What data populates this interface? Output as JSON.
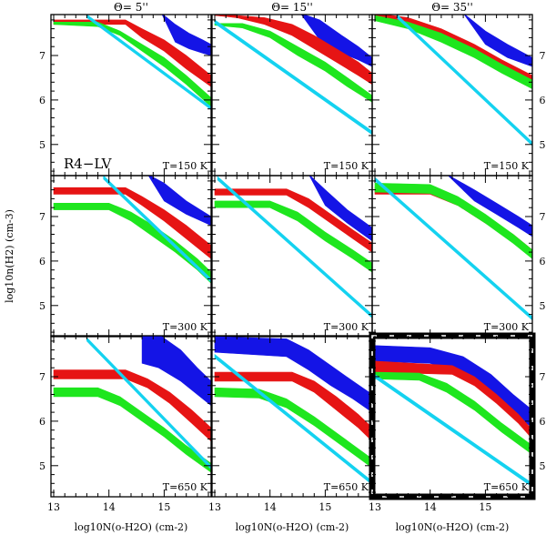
{
  "chart_data": {
    "type": "multi-panel band plot",
    "xlabel": "log10N(o-H2O)  (cm-2)",
    "ylabel": "log10n(H2)  (cm-3)",
    "x_tick_labels": [
      "13",
      "14",
      "15"
    ],
    "y_tick_labels": [
      "5",
      "6",
      "7"
    ],
    "xlim": [
      12.95,
      15.85
    ],
    "ylim": [
      4.3,
      7.92
    ],
    "column_titles": [
      "Θ= 5''",
      "Θ= 15''",
      "Θ= 35''"
    ],
    "row_labels": [
      "T=150 K",
      "T=300 K",
      "T=650 K"
    ],
    "panel_annotation": "R4−LV",
    "highlighted_panel": "T=650 K, Θ= 35''",
    "series_colors": {
      "blue": "#1414e6",
      "red": "#e61414",
      "green": "#1ee61e",
      "cyan": "#14d2f0"
    },
    "panels": [
      {
        "row": 0,
        "col": 0,
        "bands": [
          {
            "color": "blue",
            "x": [
              14.95,
              15.2,
              15.45,
              15.7,
              15.85
            ],
            "upper": [
              7.95,
              7.7,
              7.5,
              7.35,
              7.25
            ],
            "lower": [
              7.95,
              7.3,
              7.15,
              7.05,
              7.0
            ]
          },
          {
            "color": "red",
            "x": [
              13.0,
              14.3,
              14.6,
              15.0,
              15.4,
              15.85
            ],
            "upper": [
              7.8,
              7.8,
              7.6,
              7.35,
              7.0,
              6.55
            ],
            "lower": [
              7.7,
              7.7,
              7.4,
              7.1,
              6.7,
              6.3
            ]
          },
          {
            "color": "green",
            "x": [
              13.0,
              13.8,
              14.2,
              14.6,
              15.0,
              15.4,
              15.85
            ],
            "upper": [
              7.75,
              7.75,
              7.55,
              7.25,
              6.95,
              6.55,
              6.05
            ],
            "lower": [
              7.7,
              7.65,
              7.45,
              7.1,
              6.75,
              6.35,
              5.85
            ]
          },
          {
            "color": "cyan",
            "x": [
              13.6,
              15.85
            ],
            "upper": [
              7.92,
              5.85
            ],
            "lower": [
              7.85,
              5.78
            ]
          }
        ]
      },
      {
        "row": 0,
        "col": 1,
        "bands": [
          {
            "color": "blue",
            "x": [
              14.55,
              14.9,
              15.3,
              15.6,
              15.85
            ],
            "upper": [
              7.95,
              7.8,
              7.45,
              7.2,
              6.95
            ],
            "lower": [
              7.95,
              7.35,
              7.05,
              6.9,
              6.75
            ]
          },
          {
            "color": "red",
            "x": [
              13.0,
              13.4,
              13.9,
              14.4,
              14.8,
              15.2,
              15.6,
              15.85
            ],
            "upper": [
              7.95,
              7.9,
              7.85,
              7.7,
              7.45,
              7.15,
              6.85,
              6.6
            ],
            "lower": [
              7.9,
              7.85,
              7.7,
              7.45,
              7.15,
              6.85,
              6.55,
              6.35
            ]
          },
          {
            "color": "green",
            "x": [
              13.0,
              13.5,
              14.0,
              14.5,
              15.0,
              15.4,
              15.85
            ],
            "upper": [
              7.72,
              7.72,
              7.55,
              7.2,
              6.85,
              6.5,
              6.1
            ],
            "lower": [
              7.68,
              7.62,
              7.4,
              7.0,
              6.65,
              6.3,
              5.95
            ]
          },
          {
            "color": "cyan",
            "x": [
              13.0,
              15.85
            ],
            "upper": [
              7.8,
              5.3
            ],
            "lower": [
              7.72,
              5.22
            ]
          }
        ]
      },
      {
        "row": 0,
        "col": 2,
        "bands": [
          {
            "color": "blue",
            "x": [
              14.6,
              15.0,
              15.4,
              15.85
            ],
            "upper": [
              7.95,
              7.55,
              7.25,
              6.95
            ],
            "lower": [
              7.95,
              7.25,
              6.95,
              6.75
            ]
          },
          {
            "color": "red",
            "x": [
              13.0,
              13.6,
              14.2,
              14.8,
              15.3,
              15.85
            ],
            "upper": [
              7.95,
              7.85,
              7.6,
              7.25,
              6.9,
              6.55
            ],
            "lower": [
              7.85,
              7.7,
              7.4,
              7.05,
              6.7,
              6.35
            ]
          },
          {
            "color": "green",
            "x": [
              13.0,
              13.6,
              14.2,
              14.8,
              15.3,
              15.85
            ],
            "upper": [
              7.9,
              7.75,
              7.5,
              7.15,
              6.8,
              6.45
            ],
            "lower": [
              7.78,
              7.6,
              7.3,
              6.95,
              6.6,
              6.25
            ]
          },
          {
            "color": "cyan",
            "x": [
              13.4,
              15.85
            ],
            "upper": [
              7.92,
              5.05
            ],
            "lower": [
              7.84,
              4.97
            ]
          }
        ]
      },
      {
        "row": 1,
        "col": 0,
        "bands": [
          {
            "color": "blue",
            "x": [
              14.7,
              15.0,
              15.4,
              15.85
            ],
            "upper": [
              7.95,
              7.75,
              7.35,
              7.0
            ],
            "lower": [
              7.95,
              7.35,
              7.05,
              6.8
            ]
          },
          {
            "color": "red",
            "x": [
              13.0,
              14.3,
              14.6,
              15.0,
              15.4,
              15.85
            ],
            "upper": [
              7.65,
              7.65,
              7.45,
              7.15,
              6.8,
              6.35
            ],
            "lower": [
              7.5,
              7.5,
              7.25,
              6.9,
              6.5,
              6.05
            ]
          },
          {
            "color": "green",
            "x": [
              13.0,
              14.0,
              14.4,
              14.8,
              15.2,
              15.6,
              15.85
            ],
            "upper": [
              7.3,
              7.3,
              7.1,
              6.8,
              6.45,
              6.05,
              5.75
            ],
            "lower": [
              7.15,
              7.15,
              6.9,
              6.55,
              6.2,
              5.8,
              5.5
            ]
          },
          {
            "color": "cyan",
            "x": [
              13.9,
              15.85
            ],
            "upper": [
              7.92,
              5.6
            ],
            "lower": [
              7.84,
              5.52
            ]
          }
        ]
      },
      {
        "row": 1,
        "col": 1,
        "bands": [
          {
            "color": "blue",
            "x": [
              14.7,
              15.0,
              15.4,
              15.85
            ],
            "upper": [
              7.95,
              7.6,
              7.15,
              6.75
            ],
            "lower": [
              7.95,
              7.25,
              6.85,
              6.45
            ]
          },
          {
            "color": "red",
            "x": [
              13.0,
              14.3,
              14.7,
              15.1,
              15.5,
              15.85
            ],
            "upper": [
              7.62,
              7.62,
              7.4,
              7.05,
              6.7,
              6.4
            ],
            "lower": [
              7.48,
              7.48,
              7.2,
              6.85,
              6.5,
              6.2
            ]
          },
          {
            "color": "green",
            "x": [
              13.0,
              14.0,
              14.5,
              15.0,
              15.5,
              15.85
            ],
            "upper": [
              7.35,
              7.35,
              7.1,
              6.65,
              6.25,
              5.95
            ],
            "lower": [
              7.2,
              7.2,
              6.9,
              6.45,
              6.05,
              5.75
            ]
          },
          {
            "color": "cyan",
            "x": [
              13.05,
              15.85
            ],
            "upper": [
              7.9,
              4.8
            ],
            "lower": [
              7.82,
              4.72
            ]
          }
        ]
      },
      {
        "row": 1,
        "col": 2,
        "bands": [
          {
            "color": "blue",
            "x": [
              14.3,
              14.8,
              15.2,
              15.6,
              15.85
            ],
            "upper": [
              7.95,
              7.6,
              7.3,
              7.0,
              6.8
            ],
            "lower": [
              7.95,
              7.35,
              7.05,
              6.75,
              6.55
            ]
          },
          {
            "color": "red",
            "x": [
              13.0,
              14.0,
              14.5,
              15.0,
              15.5,
              15.85
            ],
            "upper": [
              7.65,
              7.65,
              7.4,
              7.0,
              6.6,
              6.25
            ],
            "lower": [
              7.5,
              7.5,
              7.25,
              6.85,
              6.45,
              6.1
            ]
          },
          {
            "color": "green",
            "x": [
              13.0,
              14.0,
              14.5,
              15.0,
              15.5,
              15.85
            ],
            "upper": [
              7.75,
              7.72,
              7.45,
              7.05,
              6.6,
              6.25
            ],
            "lower": [
              7.55,
              7.52,
              7.25,
              6.85,
              6.4,
              6.05
            ]
          },
          {
            "color": "cyan",
            "x": [
              13.0,
              15.85
            ],
            "upper": [
              7.88,
              4.75
            ],
            "lower": [
              7.8,
              4.67
            ]
          }
        ]
      },
      {
        "row": 2,
        "col": 0,
        "bands": [
          {
            "color": "blue",
            "x": [
              14.6,
              14.9,
              15.3,
              15.6,
              15.85
            ],
            "upper": [
              7.95,
              7.95,
              7.6,
              7.2,
              6.9
            ],
            "lower": [
              7.3,
              7.2,
              6.9,
              6.6,
              6.35
            ]
          },
          {
            "color": "red",
            "x": [
              13.0,
              14.3,
              14.7,
              15.1,
              15.5,
              15.85
            ],
            "upper": [
              7.15,
              7.15,
              6.95,
              6.65,
              6.25,
              5.85
            ],
            "lower": [
              6.95,
              6.95,
              6.75,
              6.4,
              5.95,
              5.55
            ]
          },
          {
            "color": "green",
            "x": [
              13.0,
              13.8,
              14.2,
              14.6,
              15.0,
              15.4,
              15.85
            ],
            "upper": [
              6.75,
              6.75,
              6.55,
              6.2,
              5.85,
              5.45,
              5.05
            ],
            "lower": [
              6.55,
              6.55,
              6.35,
              6.0,
              5.65,
              5.25,
              4.85
            ]
          },
          {
            "color": "cyan",
            "x": [
              13.6,
              15.85
            ],
            "upper": [
              7.88,
              5.0
            ],
            "lower": [
              7.8,
              4.92
            ]
          }
        ]
      },
      {
        "row": 2,
        "col": 1,
        "bands": [
          {
            "color": "blue",
            "x": [
              13.0,
              14.3,
              14.7,
              15.1,
              15.5,
              15.85
            ],
            "upper": [
              7.9,
              7.85,
              7.6,
              7.25,
              6.9,
              6.6
            ],
            "lower": [
              7.55,
              7.45,
              7.15,
              6.8,
              6.5,
              6.2
            ]
          },
          {
            "color": "red",
            "x": [
              13.0,
              14.4,
              14.8,
              15.2,
              15.6,
              15.85
            ],
            "upper": [
              7.1,
              7.1,
              6.9,
              6.55,
              6.15,
              5.85
            ],
            "lower": [
              6.9,
              6.9,
              6.65,
              6.25,
              5.85,
              5.55
            ]
          },
          {
            "color": "green",
            "x": [
              13.0,
              13.8,
              14.3,
              14.8,
              15.3,
              15.85
            ],
            "upper": [
              6.75,
              6.72,
              6.5,
              6.1,
              5.65,
              5.15
            ],
            "lower": [
              6.55,
              6.52,
              6.3,
              5.9,
              5.45,
              4.95
            ]
          },
          {
            "color": "cyan",
            "x": [
              13.0,
              15.85
            ],
            "upper": [
              7.5,
              4.65
            ],
            "lower": [
              7.42,
              4.57
            ]
          }
        ]
      },
      {
        "row": 2,
        "col": 2,
        "bands": [
          {
            "color": "blue",
            "x": [
              13.0,
              14.0,
              14.6,
              15.1,
              15.5,
              15.85
            ],
            "upper": [
              7.7,
              7.65,
              7.45,
              7.05,
              6.6,
              6.25
            ],
            "lower": [
              7.35,
              7.3,
              7.05,
              6.65,
              6.2,
              5.85
            ]
          },
          {
            "color": "red",
            "x": [
              13.0,
              14.4,
              14.8,
              15.2,
              15.6,
              15.85
            ],
            "upper": [
              7.35,
              7.25,
              7.0,
              6.6,
              6.15,
              5.8
            ],
            "lower": [
              7.1,
              7.05,
              6.8,
              6.4,
              5.95,
              5.6
            ]
          },
          {
            "color": "green",
            "x": [
              13.0,
              13.8,
              14.3,
              14.8,
              15.3,
              15.85
            ],
            "upper": [
              7.1,
              7.08,
              6.85,
              6.45,
              5.95,
              5.45
            ],
            "lower": [
              6.95,
              6.92,
              6.65,
              6.25,
              5.75,
              5.25
            ]
          },
          {
            "color": "cyan",
            "x": [
              13.0,
              15.85
            ],
            "upper": [
              7.05,
              4.6
            ],
            "lower": [
              6.97,
              4.52
            ]
          }
        ]
      }
    ]
  }
}
